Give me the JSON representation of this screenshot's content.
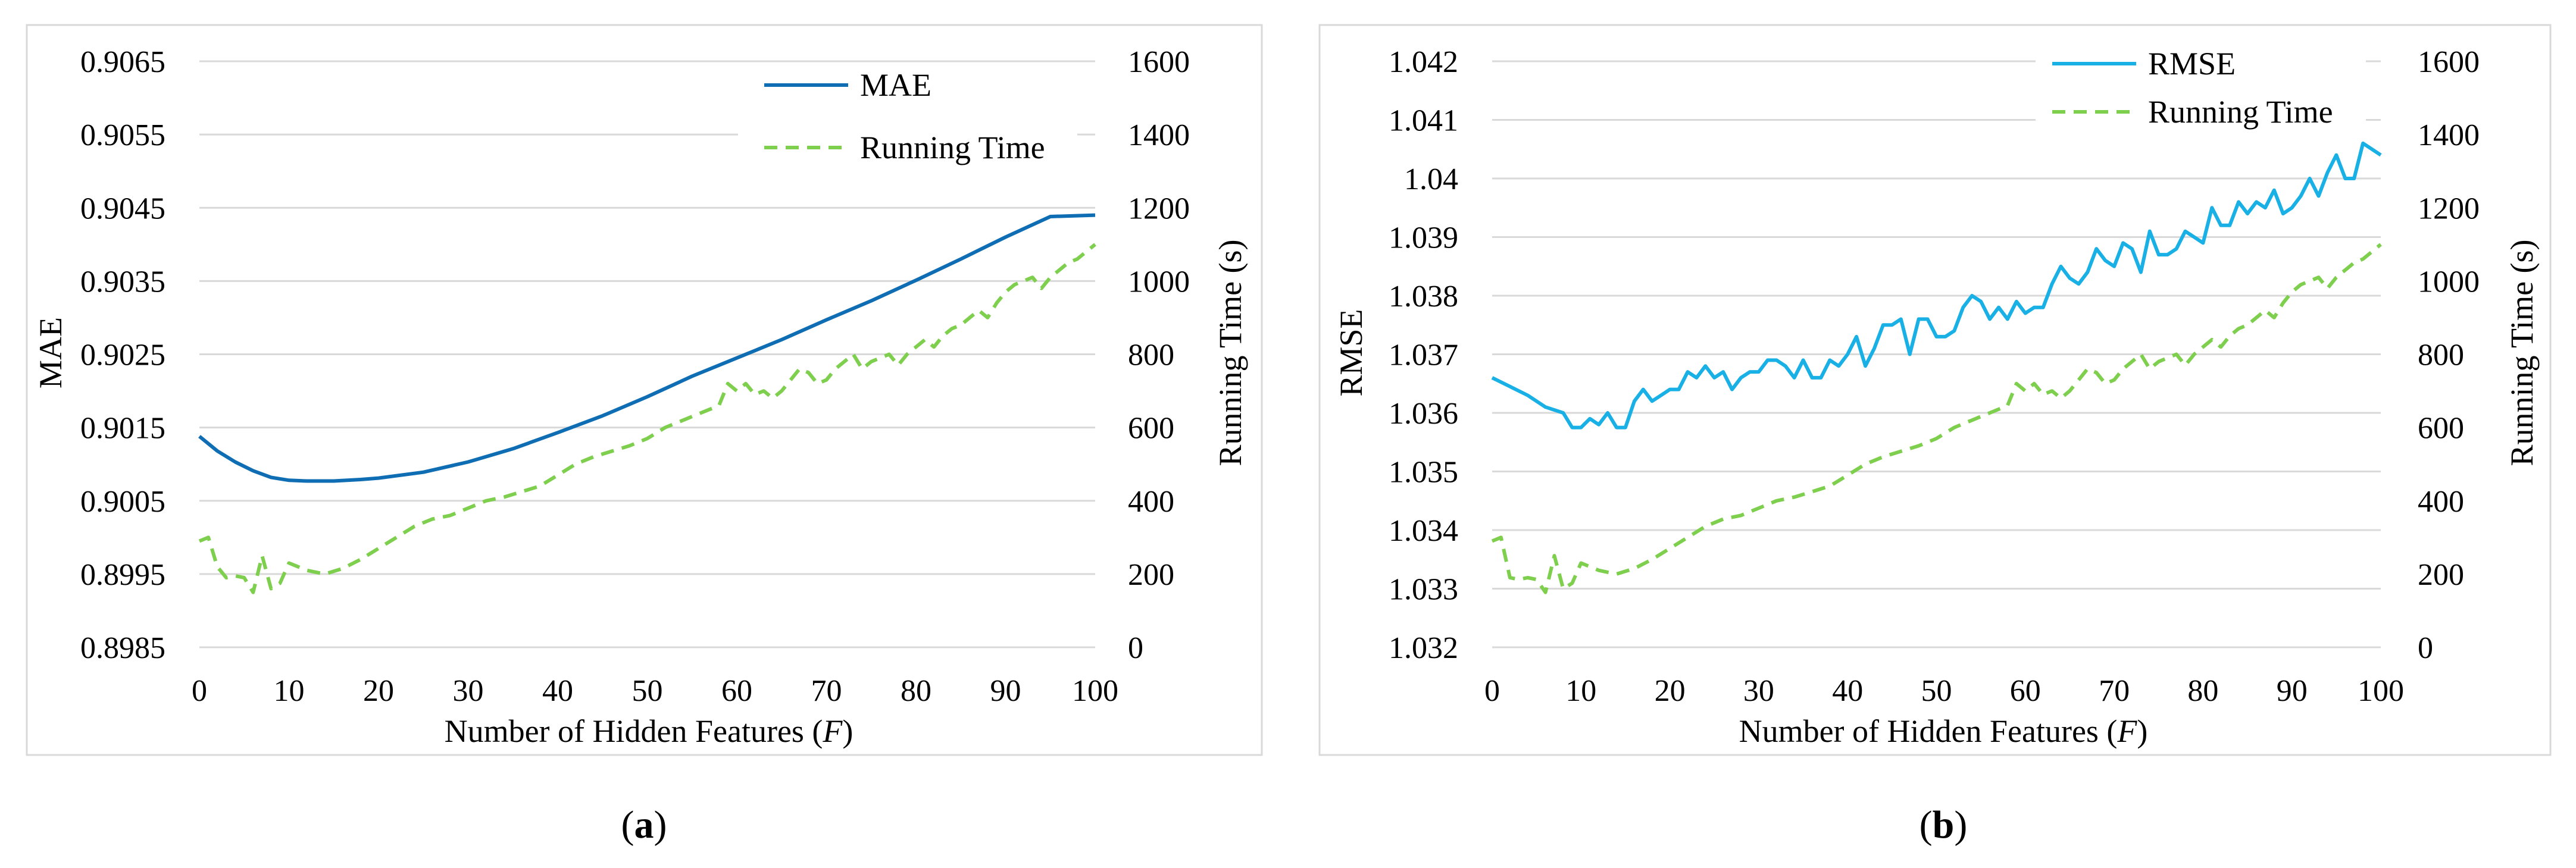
{
  "chart_data": [
    {
      "type": "line",
      "caption": {
        "open": "(",
        "letter": "a",
        "close": ")"
      },
      "xlabel_main": "Number of Hidden Features (",
      "xlabel_var": "F",
      "xlabel_end": ")",
      "ylabel_left": "MAE",
      "ylabel_right": "Running  Time  (s)",
      "xlim": [
        0,
        100
      ],
      "x_ticks": [
        "0",
        "10",
        "20",
        "30",
        "40",
        "50",
        "60",
        "70",
        "80",
        "90",
        "100"
      ],
      "y_left_lim": [
        0.8985,
        0.9065
      ],
      "y_left_ticks": [
        "0.8985",
        "0.8995",
        "0.9005",
        "0.9015",
        "0.9025",
        "0.9035",
        "0.9045",
        "0.9055",
        "0.9065"
      ],
      "y_right_lim": [
        0,
        1600
      ],
      "y_right_ticks": [
        "0",
        "200",
        "400",
        "600",
        "800",
        "1000",
        "1200",
        "1400",
        "1600"
      ],
      "colors": {
        "primary": "#0f6db3",
        "time": "#7fcf4e"
      },
      "series": [
        {
          "name": "MAE",
          "axis": "left",
          "style": "solid",
          "x": [
            0,
            2,
            4,
            6,
            8,
            10,
            12,
            15,
            18,
            20,
            25,
            30,
            35,
            40,
            45,
            50,
            55,
            60,
            65,
            70,
            75,
            80,
            85,
            90,
            95,
            100
          ],
          "values": [
            0.90138,
            0.90118,
            0.90103,
            0.90091,
            0.90082,
            0.90078,
            0.90077,
            0.90077,
            0.90079,
            0.90081,
            0.90089,
            0.90103,
            0.90121,
            0.90143,
            0.90166,
            0.90192,
            0.9022,
            0.90245,
            0.9027,
            0.90297,
            0.90323,
            0.90351,
            0.9038,
            0.9041,
            0.90438,
            0.9044
          ]
        },
        {
          "name": "Running Time",
          "axis": "right",
          "style": "dashed",
          "x": [
            0,
            1,
            2,
            3,
            4,
            5,
            6,
            7,
            8,
            9,
            10,
            12,
            14,
            16,
            18,
            20,
            22,
            24,
            26,
            28,
            30,
            32,
            34,
            36,
            38,
            40,
            42,
            44,
            46,
            48,
            50,
            52,
            54,
            56,
            58,
            59,
            60,
            61,
            62,
            63,
            64,
            65,
            66,
            67,
            68,
            69,
            70,
            71,
            72,
            73,
            74,
            75,
            76,
            77,
            78,
            79,
            80,
            81,
            82,
            83,
            84,
            85,
            86,
            87,
            88,
            89,
            90,
            91,
            92,
            93,
            94,
            95,
            96,
            97,
            98,
            99,
            100
          ],
          "values": [
            290,
            300,
            220,
            190,
            195,
            190,
            150,
            250,
            160,
            175,
            230,
            210,
            200,
            215,
            240,
            270,
            300,
            330,
            350,
            360,
            380,
            400,
            410,
            425,
            440,
            470,
            500,
            520,
            535,
            550,
            570,
            600,
            620,
            640,
            660,
            720,
            700,
            720,
            690,
            700,
            680,
            700,
            730,
            760,
            750,
            720,
            730,
            760,
            780,
            800,
            760,
            780,
            790,
            800,
            770,
            800,
            820,
            840,
            820,
            850,
            870,
            880,
            900,
            920,
            900,
            940,
            970,
            990,
            1000,
            1010,
            980,
            1010,
            1030,
            1050,
            1060,
            1080,
            1100
          ]
        }
      ]
    },
    {
      "type": "line",
      "caption": {
        "open": "(",
        "letter": "b",
        "close": ")"
      },
      "xlabel_main": "Number of Hidden Features (",
      "xlabel_var": "F",
      "xlabel_end": ")",
      "ylabel_left": "RMSE",
      "ylabel_right": "Running  Time  (s)",
      "xlim": [
        0,
        100
      ],
      "x_ticks": [
        "0",
        "10",
        "20",
        "30",
        "40",
        "50",
        "60",
        "70",
        "80",
        "90",
        "100"
      ],
      "y_left_lim": [
        1.032,
        1.042
      ],
      "y_left_ticks": [
        "1.032",
        "1.033",
        "1.034",
        "1.035",
        "1.036",
        "1.037",
        "1.038",
        "1.039",
        "1.04",
        "1.041",
        "1.042"
      ],
      "y_right_lim": [
        0,
        1600
      ],
      "y_right_ticks": [
        "0",
        "200",
        "400",
        "600",
        "800",
        "1000",
        "1200",
        "1400",
        "1600"
      ],
      "colors": {
        "primary": "#19b0e6",
        "time": "#7fcf4e"
      },
      "series": [
        {
          "name": "RMSE",
          "axis": "left",
          "style": "solid",
          "x": [
            0,
            2,
            4,
            6,
            8,
            9,
            10,
            11,
            12,
            13,
            14,
            15,
            16,
            17,
            18,
            19,
            20,
            21,
            22,
            23,
            24,
            25,
            26,
            27,
            28,
            29,
            30,
            31,
            32,
            33,
            34,
            35,
            36,
            37,
            38,
            39,
            40,
            41,
            42,
            43,
            44,
            45,
            46,
            47,
            48,
            49,
            50,
            51,
            52,
            53,
            54,
            55,
            56,
            57,
            58,
            59,
            60,
            61,
            62,
            63,
            64,
            65,
            66,
            67,
            68,
            69,
            70,
            71,
            72,
            73,
            74,
            75,
            76,
            77,
            78,
            79,
            80,
            81,
            82,
            83,
            84,
            85,
            86,
            87,
            88,
            89,
            90,
            91,
            92,
            93,
            94,
            95,
            96,
            97,
            98,
            99,
            100
          ],
          "values": [
            1.0366,
            1.03645,
            1.0363,
            1.0361,
            1.036,
            1.03575,
            1.03575,
            1.0359,
            1.0358,
            1.036,
            1.03575,
            1.03575,
            1.0362,
            1.0364,
            1.0362,
            1.0363,
            1.0364,
            1.0364,
            1.0367,
            1.0366,
            1.0368,
            1.0366,
            1.0367,
            1.0364,
            1.0366,
            1.0367,
            1.0367,
            1.0369,
            1.0369,
            1.0368,
            1.0366,
            1.0369,
            1.0366,
            1.0366,
            1.0369,
            1.0368,
            1.037,
            1.0373,
            1.0368,
            1.0371,
            1.0375,
            1.0375,
            1.0376,
            1.037,
            1.0376,
            1.0376,
            1.0373,
            1.0373,
            1.0374,
            1.0378,
            1.038,
            1.0379,
            1.0376,
            1.0378,
            1.0376,
            1.0379,
            1.0377,
            1.0378,
            1.0378,
            1.0382,
            1.0385,
            1.0383,
            1.0382,
            1.0384,
            1.0388,
            1.0386,
            1.0385,
            1.0389,
            1.0388,
            1.0384,
            1.0391,
            1.0387,
            1.0387,
            1.0388,
            1.0391,
            1.039,
            1.0389,
            1.0395,
            1.0392,
            1.0392,
            1.0396,
            1.0394,
            1.0396,
            1.0395,
            1.0398,
            1.0394,
            1.0395,
            1.0397,
            1.04,
            1.0397,
            1.0401,
            1.0404,
            1.04,
            1.04,
            1.0406,
            1.0405,
            1.0404
          ]
        },
        {
          "name": "Running Time",
          "axis": "right",
          "style": "dashed",
          "x": [
            0,
            1,
            2,
            3,
            4,
            5,
            6,
            7,
            8,
            9,
            10,
            12,
            14,
            16,
            18,
            20,
            22,
            24,
            26,
            28,
            30,
            32,
            34,
            36,
            38,
            40,
            42,
            44,
            46,
            48,
            50,
            52,
            54,
            56,
            58,
            59,
            60,
            61,
            62,
            63,
            64,
            65,
            66,
            67,
            68,
            69,
            70,
            71,
            72,
            73,
            74,
            75,
            76,
            77,
            78,
            79,
            80,
            81,
            82,
            83,
            84,
            85,
            86,
            87,
            88,
            89,
            90,
            91,
            92,
            93,
            94,
            95,
            96,
            97,
            98,
            99,
            100
          ],
          "values": [
            290,
            300,
            190,
            185,
            190,
            185,
            150,
            250,
            160,
            175,
            230,
            210,
            200,
            215,
            240,
            270,
            300,
            330,
            350,
            360,
            380,
            400,
            410,
            425,
            440,
            470,
            500,
            520,
            535,
            550,
            570,
            600,
            620,
            640,
            660,
            720,
            700,
            720,
            690,
            700,
            680,
            700,
            730,
            760,
            750,
            720,
            730,
            760,
            780,
            800,
            760,
            780,
            790,
            800,
            770,
            800,
            820,
            840,
            820,
            850,
            870,
            880,
            900,
            920,
            900,
            940,
            970,
            990,
            1000,
            1010,
            980,
            1010,
            1030,
            1050,
            1060,
            1080,
            1100
          ]
        }
      ]
    }
  ]
}
